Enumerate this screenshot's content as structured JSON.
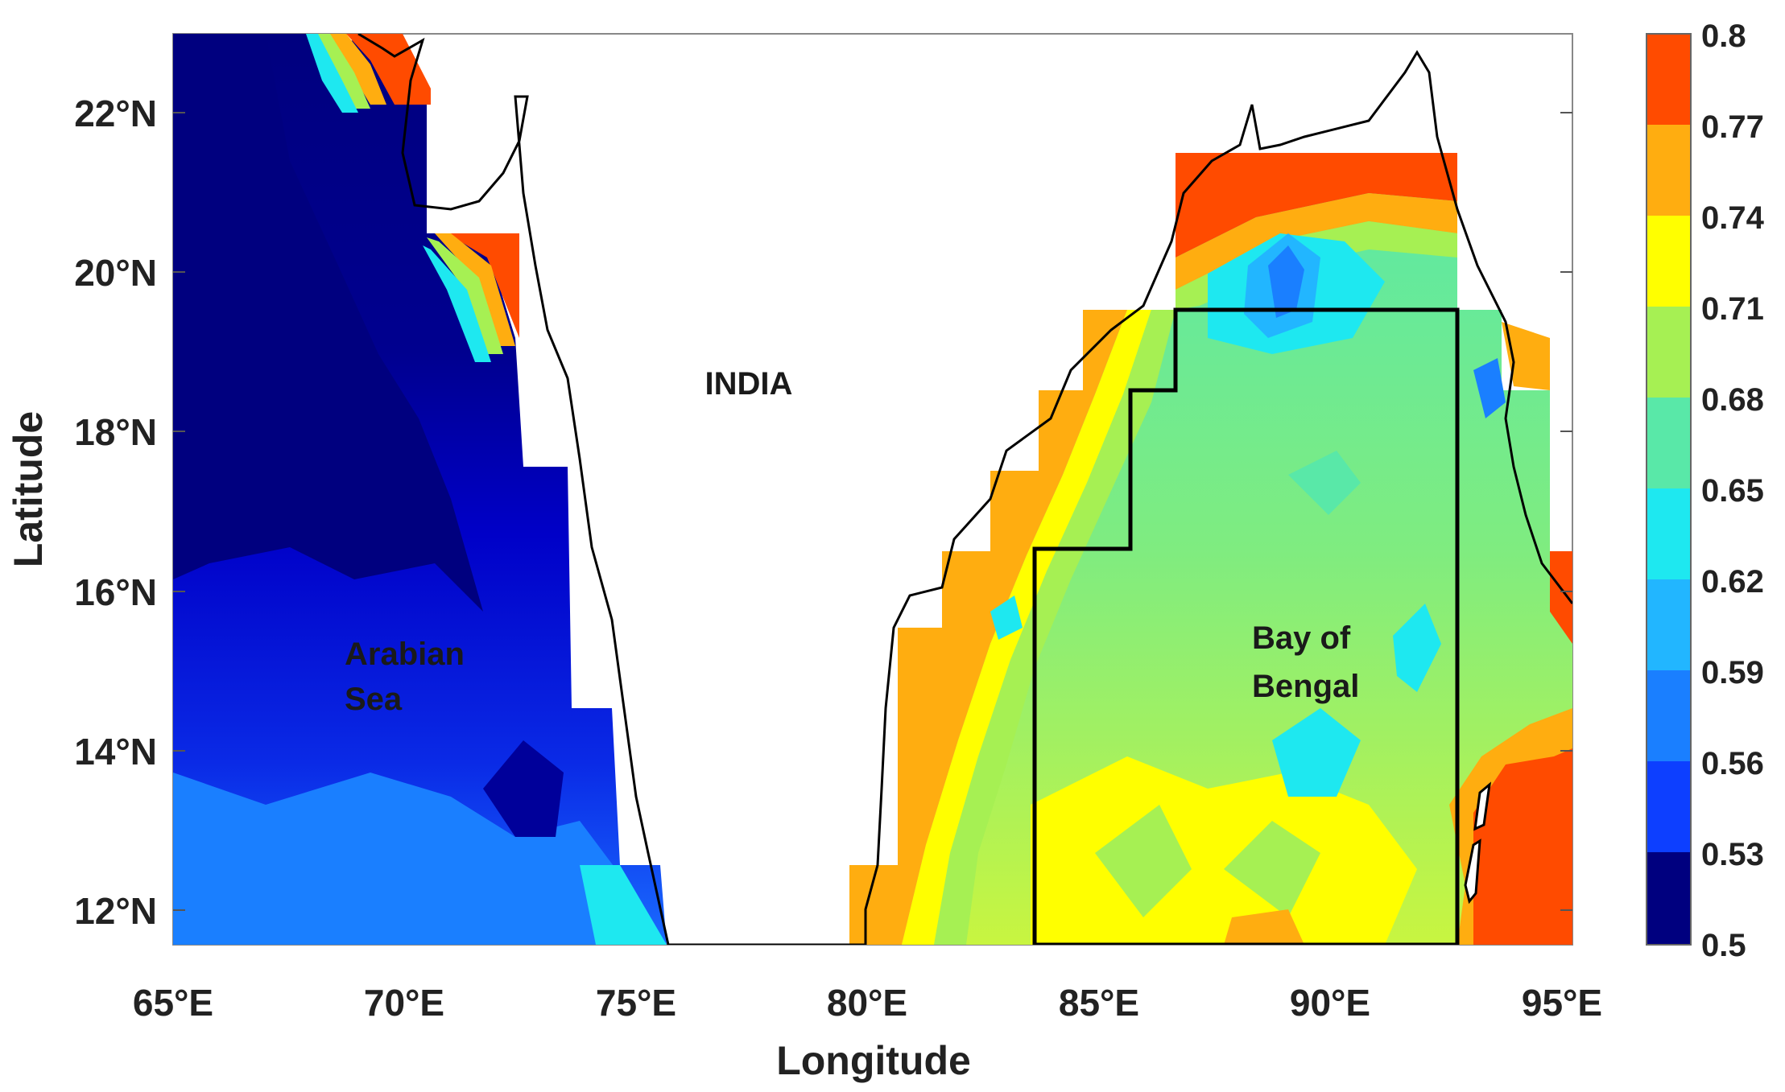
{
  "map": {
    "xlabel": "Longitude",
    "ylabel": "Latitude",
    "x_ticks": [
      "65°E",
      "70°E",
      "75°E",
      "80°E",
      "85°E",
      "90°E",
      "95°E"
    ],
    "y_ticks": [
      "12°N",
      "14°N",
      "16°N",
      "18°N",
      "20°N",
      "22°N"
    ],
    "x_tick_values": [
      65,
      70,
      75,
      80,
      85,
      90,
      95
    ],
    "y_tick_values": [
      12,
      14,
      16,
      18,
      20,
      22
    ],
    "lon_range": [
      65,
      95.2
    ],
    "lat_range": [
      11.7,
      23.1
    ],
    "labels": {
      "india": "INDIA",
      "arabian_line1": "Arabian",
      "arabian_line2": "Sea",
      "bay_line1": "Bay of",
      "bay_line2": "Bengal"
    }
  },
  "colorbar": {
    "ticks": [
      "0.8",
      "0.77",
      "0.74",
      "0.71",
      "0.68",
      "0.65",
      "0.62",
      "0.59",
      "0.56",
      "0.53",
      "0.5"
    ],
    "min": 0.5,
    "max": 0.8,
    "colors": [
      "#00007f",
      "#0000d0",
      "#0d3fff",
      "#1a7fff",
      "#22b6ff",
      "#1ee8f0",
      "#59e8a8",
      "#a6f053",
      "#ffff00",
      "#ffad10",
      "#ff4b00"
    ]
  }
}
